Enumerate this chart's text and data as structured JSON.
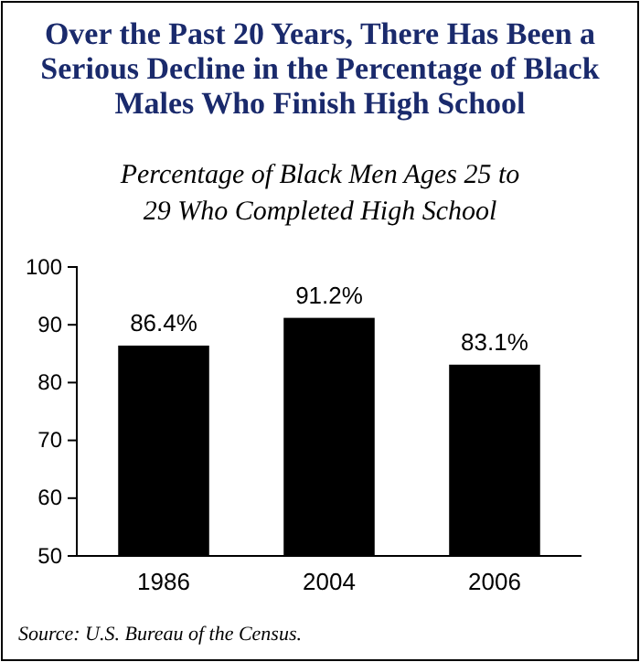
{
  "chart_data": {
    "type": "bar",
    "title": "Over the Past 20 Years, There Has Been a Serious Decline in the Percentage of Black Males Who Finish High School",
    "subtitle": "Percentage of Black Men Ages 25 to 29 Who Completed High School",
    "categories": [
      "1986",
      "2004",
      "2006"
    ],
    "values": [
      86.4,
      91.2,
      83.1
    ],
    "value_labels": [
      "86.4%",
      "91.2%",
      "83.1%"
    ],
    "color": "#000000",
    "ylim": [
      50,
      100
    ],
    "yticks": [
      50,
      60,
      70,
      80,
      90,
      100
    ],
    "annotations": [
      "Source: U.S. Bureau of the Census."
    ]
  }
}
